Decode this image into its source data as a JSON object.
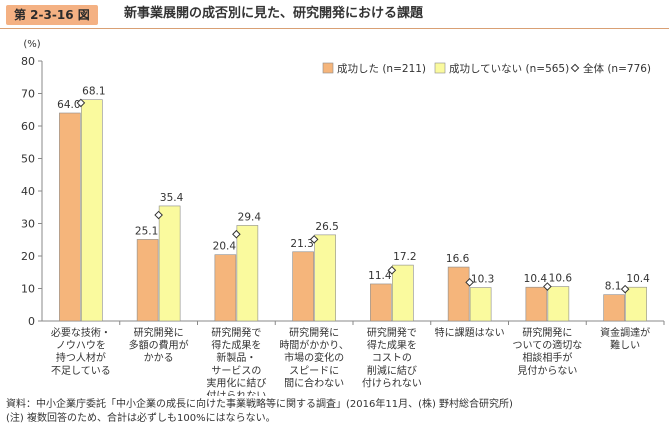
{
  "figure": {
    "badge": "第 2-3-16 図",
    "title": "新事業展開の成否別に見た、研究開発における課題"
  },
  "notes": {
    "source": "資料：中小企業庁委託「中小企業の成長に向けた事業戦略等に関する調査」(2016年11月、(株) 野村総合研究所)",
    "note": "(注) 複数回答のため、合計は必ずしも100%にはならない。"
  },
  "colors": {
    "success": "#f5b57b",
    "not_success": "#fafa9e",
    "bar_stroke": "#8c8c8c",
    "axis": "#888888"
  },
  "chart_data": {
    "type": "bar",
    "y_unit": "(%)",
    "ylim": [
      0,
      80
    ],
    "yticks": [
      0,
      10,
      20,
      30,
      40,
      50,
      60,
      70,
      80
    ],
    "grid": false,
    "legend_position": "top-right",
    "categories": [
      [
        "必要な技術・",
        "ノウハウを",
        "持つ人材が",
        "不足している"
      ],
      [
        "研究開発に",
        "多額の費用が",
        "かかる"
      ],
      [
        "研究開発で",
        "得た成果を",
        "新製品・",
        "サービスの",
        "実用化に結び",
        "付けられない"
      ],
      [
        "研究開発に",
        "時間がかかり、",
        "市場の変化の",
        "スピードに",
        "間に合わない"
      ],
      [
        "研究開発で",
        "得た成果を",
        "コストの",
        "削減に結び",
        "付けられない"
      ],
      [
        "特に課題はない"
      ],
      [
        "研究開発に",
        "ついての適切な",
        "相談相手が",
        "見付からない"
      ],
      [
        "資金調達が",
        "難しい"
      ]
    ],
    "series": [
      {
        "name": "成功した (n=211)",
        "type": "bar",
        "values": [
          64.0,
          25.1,
          20.4,
          21.3,
          11.4,
          16.6,
          10.4,
          8.1
        ]
      },
      {
        "name": "成功していない (n=565)",
        "type": "bar",
        "values": [
          68.1,
          35.4,
          29.4,
          26.5,
          17.2,
          10.3,
          10.6,
          10.4
        ]
      },
      {
        "name": "全体 (n=776)",
        "type": "marker",
        "values": [
          67.1,
          32.6,
          26.7,
          25.1,
          15.6,
          11.9,
          10.6,
          9.8
        ]
      }
    ],
    "value_labels": [
      [
        "64.0",
        "25.1",
        "20.4",
        "21.3",
        "11.4",
        "16.6",
        "10.4",
        "8.1"
      ],
      [
        "68.1",
        "35.4",
        "29.4",
        "26.5",
        "17.2",
        "10.3",
        "10.6",
        "10.4"
      ]
    ]
  }
}
